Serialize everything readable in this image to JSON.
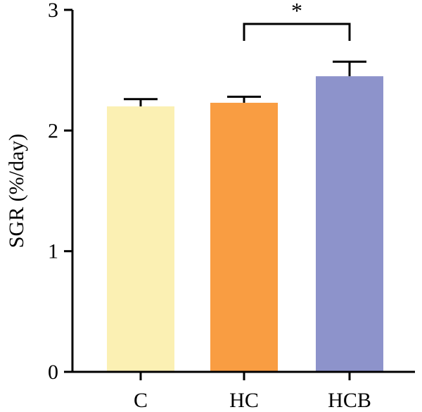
{
  "chart_data": {
    "type": "bar",
    "title": "",
    "xlabel": "",
    "ylabel": "SGR (%/day)",
    "ylim": [
      0,
      3
    ],
    "yticks": [
      0,
      1,
      2,
      3
    ],
    "categories": [
      "C",
      "HC",
      "HCB"
    ],
    "values": [
      2.2,
      2.23,
      2.45
    ],
    "errors": [
      0.06,
      0.05,
      0.12
    ],
    "colors": [
      "#FBF0B3",
      "#F99D42",
      "#8D93CB"
    ],
    "significance": [
      {
        "from": "HC",
        "to": "HCB",
        "label": "*"
      }
    ],
    "grid": false,
    "legend": "none"
  }
}
